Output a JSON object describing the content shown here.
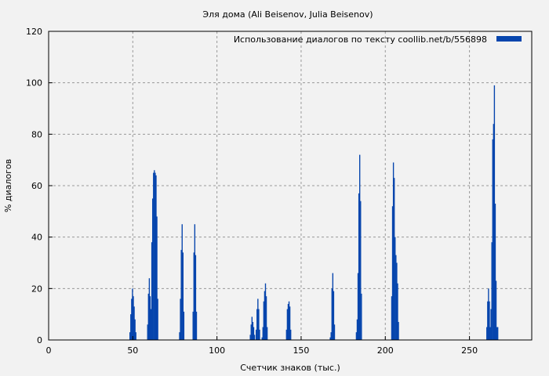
{
  "chart_data": {
    "type": "bar",
    "title": "Эля дома (Ali Beisenov, Julia Beisenov)",
    "xlabel": "Счетчик знаков (тыс.)",
    "ylabel": "% диалогов",
    "xlim": [
      0,
      287
    ],
    "ylim": [
      0,
      120
    ],
    "xticks": [
      0,
      50,
      100,
      150,
      200,
      250
    ],
    "yticks": [
      0,
      20,
      40,
      60,
      80,
      100,
      120
    ],
    "grid": true,
    "legend_position": "top-right",
    "series": [
      {
        "name": "Использование диалогов по тексту  coollib.net/b/556898",
        "color": "#0645ad",
        "x": [
          48,
          48.5,
          49,
          49.5,
          50,
          50.5,
          51,
          51.5,
          58.5,
          59,
          59.5,
          60,
          60.5,
          61,
          61.5,
          62,
          62.5,
          63,
          63.5,
          64,
          64.5,
          77.5,
          78,
          78.5,
          79,
          79.5,
          80,
          85.5,
          86,
          86.5,
          87,
          87.5,
          119.5,
          120,
          120.5,
          121,
          121.5,
          122,
          123,
          123.5,
          124,
          124.5,
          125,
          126.5,
          127,
          127.5,
          128,
          128.5,
          129,
          129.5,
          141,
          141.5,
          142,
          142.5,
          143,
          143.5,
          167,
          167.5,
          168,
          168.5,
          169,
          169.5,
          182.5,
          183,
          183.5,
          184,
          184.5,
          185,
          185.5,
          203.5,
          204,
          204.5,
          205,
          205.5,
          206,
          206.5,
          207,
          207.5,
          260,
          260.5,
          261,
          261.5,
          262,
          262.5,
          263,
          263.5,
          264,
          264.5,
          265,
          265.5,
          266,
          266.5
        ],
        "y": [
          3,
          10,
          16,
          20,
          17,
          13,
          8,
          3,
          6,
          18,
          24,
          17,
          12,
          38,
          55,
          65,
          66,
          65,
          64,
          48,
          16,
          3,
          16,
          35,
          45,
          34,
          11,
          11,
          34,
          45,
          33,
          11,
          2,
          6,
          9,
          7,
          5,
          2,
          4,
          12,
          16,
          12,
          4,
          1,
          5,
          15,
          19,
          22,
          17,
          5,
          4,
          12,
          14,
          15,
          13,
          4,
          1,
          3,
          20,
          26,
          19,
          6,
          3,
          8,
          26,
          57,
          72,
          54,
          18,
          17,
          52,
          69,
          63,
          40,
          33,
          30,
          22,
          7,
          5,
          15,
          20,
          15,
          5,
          12,
          38,
          78,
          84,
          99,
          53,
          23,
          5,
          5
        ]
      }
    ]
  }
}
